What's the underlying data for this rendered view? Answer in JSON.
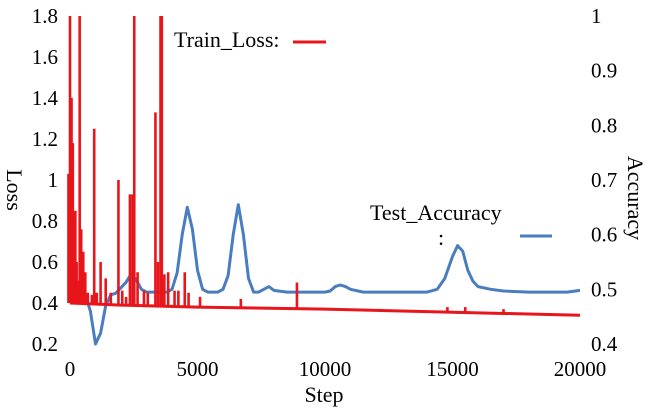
{
  "chart_data": {
    "type": "line",
    "xlabel": "Step",
    "ylabel_left": "Loss",
    "ylabel_right": "Accuracy",
    "x_ticks": [
      "0",
      "5000",
      "10000",
      "15000",
      "20000"
    ],
    "y_left_ticks": [
      "0.2",
      "0.4",
      "0.6",
      "0.8",
      "1",
      "1.2",
      "1.4",
      "1.6",
      "1.8"
    ],
    "y_right_ticks": [
      "0.4",
      "0.5",
      "0.6",
      "0.7",
      "0.8",
      "0.9",
      "1"
    ],
    "xlim": [
      0,
      20000
    ],
    "ylim_left": [
      0.2,
      1.8
    ],
    "ylim_right": [
      0.4,
      1.0
    ],
    "grid": false,
    "legend": [
      {
        "label": "Train_Loss:",
        "color": "#e8151b",
        "placement": "top-center"
      },
      {
        "label": "Test_Accuracy",
        "label_line2": ":",
        "color": "#4a7dbf",
        "placement": "middle-right"
      }
    ],
    "series": [
      {
        "name": "Train_Loss",
        "axis": "left",
        "color": "#e8151b",
        "baseline": {
          "x": [
            0,
            2000,
            5000,
            10000,
            15000,
            20000
          ],
          "y": [
            0.4,
            0.39,
            0.38,
            0.37,
            0.355,
            0.34
          ]
        },
        "spikes": [
          [
            -60,
            1.03
          ],
          [
            0,
            1.8
          ],
          [
            60,
            1.4
          ],
          [
            110,
            1.18
          ],
          [
            160,
            0.84
          ],
          [
            210,
            0.85
          ],
          [
            260,
            0.6
          ],
          [
            310,
            0.51
          ],
          [
            380,
            1.8
          ],
          [
            440,
            0.76
          ],
          [
            520,
            0.65
          ],
          [
            600,
            0.55
          ],
          [
            700,
            0.45
          ],
          [
            860,
            0.44
          ],
          [
            950,
            1.25
          ],
          [
            1050,
            0.45
          ],
          [
            1200,
            0.6
          ],
          [
            1400,
            0.52
          ],
          [
            1600,
            0.45
          ],
          [
            1900,
            1.0
          ],
          [
            2050,
            0.46
          ],
          [
            2200,
            0.43
          ],
          [
            2350,
            0.93
          ],
          [
            2450,
            0.93
          ],
          [
            2520,
            1.8
          ],
          [
            2650,
            0.55
          ],
          [
            2900,
            0.46
          ],
          [
            3050,
            0.45
          ],
          [
            3350,
            1.33
          ],
          [
            3450,
            0.6
          ],
          [
            3550,
            1.8
          ],
          [
            3600,
            1.8
          ],
          [
            3700,
            0.54
          ],
          [
            3850,
            0.55
          ],
          [
            4100,
            0.46
          ],
          [
            4250,
            0.46
          ],
          [
            4500,
            0.55
          ],
          [
            4650,
            0.45
          ],
          [
            5100,
            0.43
          ],
          [
            6700,
            0.42
          ],
          [
            8900,
            0.5
          ],
          [
            14800,
            0.38
          ],
          [
            15500,
            0.38
          ],
          [
            17000,
            0.37
          ]
        ]
      },
      {
        "name": "Test_Accuracy",
        "axis": "right",
        "color": "#4a7dbf",
        "x": [
          0,
          400,
          600,
          800,
          1000,
          1200,
          1400,
          1600,
          1800,
          2000,
          2200,
          2400,
          2600,
          2800,
          3000,
          3200,
          3400,
          3600,
          3800,
          4000,
          4200,
          4400,
          4600,
          4800,
          5000,
          5200,
          5400,
          5600,
          5800,
          6000,
          6200,
          6400,
          6600,
          6800,
          7000,
          7200,
          7400,
          7600,
          7800,
          8000,
          8500,
          9000,
          9500,
          10000,
          10200,
          10400,
          10600,
          10800,
          11000,
          11500,
          12000,
          13000,
          14000,
          14400,
          14700,
          15000,
          15200,
          15400,
          15600,
          15800,
          16000,
          16500,
          17000,
          18000,
          19000,
          19500,
          20000
        ],
        "y": [
          0.495,
          0.495,
          0.49,
          0.46,
          0.4,
          0.42,
          0.47,
          0.49,
          0.493,
          0.503,
          0.513,
          0.528,
          0.517,
          0.5,
          0.495,
          0.495,
          0.495,
          0.495,
          0.495,
          0.5,
          0.53,
          0.6,
          0.65,
          0.61,
          0.535,
          0.5,
          0.495,
          0.495,
          0.495,
          0.5,
          0.525,
          0.6,
          0.655,
          0.6,
          0.52,
          0.495,
          0.495,
          0.5,
          0.505,
          0.498,
          0.495,
          0.495,
          0.495,
          0.495,
          0.497,
          0.505,
          0.508,
          0.505,
          0.5,
          0.495,
          0.495,
          0.495,
          0.495,
          0.5,
          0.52,
          0.56,
          0.58,
          0.57,
          0.535,
          0.515,
          0.505,
          0.5,
          0.497,
          0.495,
          0.495,
          0.495,
          0.498
        ]
      }
    ]
  }
}
